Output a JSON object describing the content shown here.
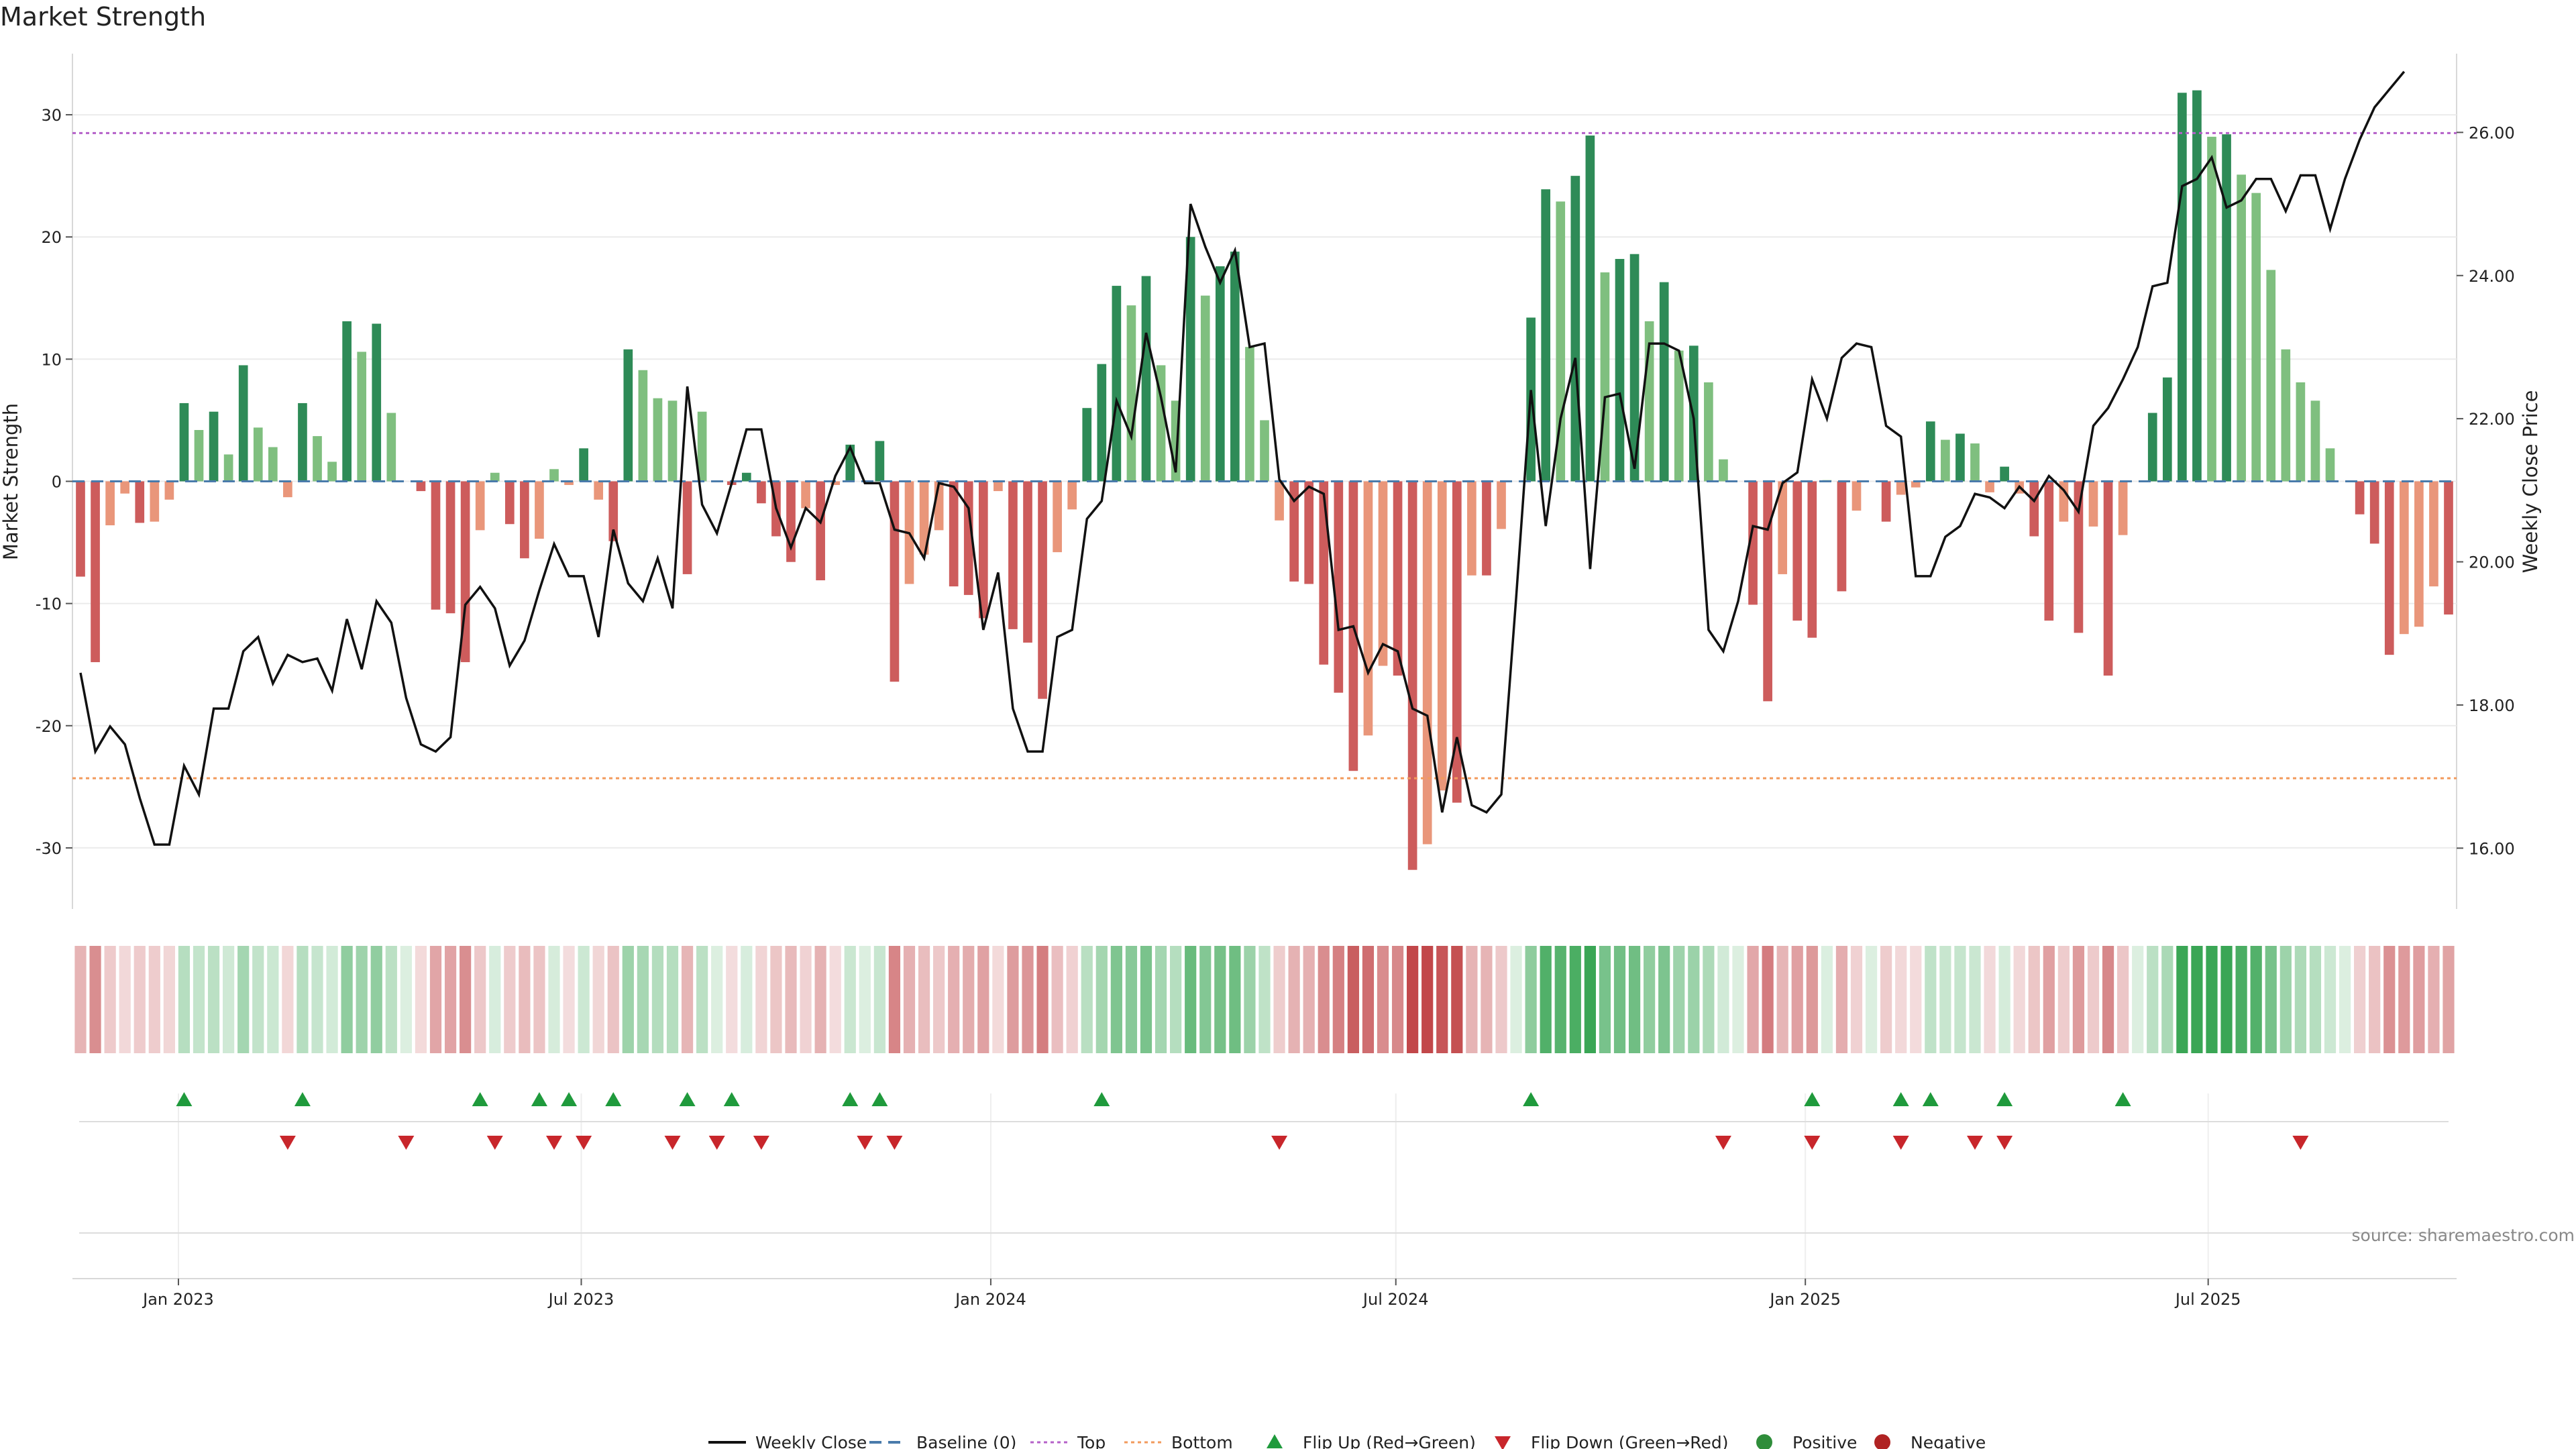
{
  "chart_data": {
    "type": "bar",
    "title": "Market Strength",
    "ylabel": "Market Strength",
    "y2label": "Weekly Close Price",
    "ylim": [
      -35,
      35
    ],
    "y2lim": [
      15.15,
      27.1
    ],
    "yticks": [
      -30,
      -20,
      -10,
      0,
      10,
      20,
      30
    ],
    "y2ticks": [
      "16.00",
      "18.00",
      "20.00",
      "22.00",
      "24.00",
      "26.00"
    ],
    "x_start": "2022-11-18",
    "x_end": "2025-10-17",
    "xticks": [
      {
        "date": "2023-01-01",
        "label": "Jan 2023"
      },
      {
        "date": "2023-07-01",
        "label": "Jul 2023"
      },
      {
        "date": "2024-01-01",
        "label": "Jan 2024"
      },
      {
        "date": "2024-07-01",
        "label": "Jul 2024"
      },
      {
        "date": "2025-01-01",
        "label": "Jan 2025"
      },
      {
        "date": "2025-07-01",
        "label": "Jul 2025"
      }
    ],
    "top_line": 28.5,
    "bottom_line": -24.3,
    "strength_values": [
      -7.8,
      -14.8,
      -3.6,
      -1.0,
      -3.4,
      -3.3,
      -1.5,
      6.4,
      4.2,
      5.7,
      2.2,
      9.5,
      4.4,
      2.8,
      -1.3,
      6.4,
      3.7,
      1.6,
      13.1,
      10.6,
      12.9,
      5.6,
      0,
      -0.8,
      -10.5,
      -10.8,
      -14.8,
      -4.0,
      0.7,
      -3.5,
      -6.3,
      -4.7,
      1.0,
      -0.3,
      2.7,
      -1.5,
      -4.9,
      10.8,
      9.1,
      6.8,
      6.6,
      -7.6,
      5.7,
      0,
      -0.3,
      0.7,
      -1.8,
      -4.5,
      -6.6,
      -2.2,
      -8.1,
      -0.3,
      3.0,
      0,
      3.3,
      -16.4,
      -8.4,
      -6.0,
      -4.0,
      -8.6,
      -9.3,
      -11.2,
      -0.8,
      -12.1,
      -13.2,
      -17.8,
      -5.8,
      -2.3,
      6.0,
      9.6,
      16.0,
      14.4,
      16.8,
      9.5,
      6.6,
      20.0,
      15.2,
      17.6,
      18.8,
      11.0,
      5.0,
      -3.2,
      -8.2,
      -8.4,
      -15.0,
      -17.3,
      -23.7,
      -20.8,
      -15.1,
      -15.9,
      -31.8,
      -29.7,
      -25.3,
      -26.3,
      -7.7,
      -7.7,
      -3.9,
      0,
      13.4,
      23.9,
      22.9,
      25.0,
      28.3,
      17.1,
      18.2,
      18.6,
      13.1,
      16.3,
      10.7,
      11.1,
      8.1,
      1.8,
      0,
      -10.1,
      -18.0,
      -7.6,
      -11.4,
      -12.8,
      0.1,
      -9.0,
      -2.4,
      0,
      -3.3,
      -1.1,
      -0.5,
      4.9,
      3.4,
      3.9,
      3.1,
      -0.9,
      1.2,
      -1.0,
      -4.5,
      -11.4,
      -3.3,
      -12.4,
      -3.7,
      -15.9,
      -4.4,
      0,
      5.6,
      8.5,
      31.8,
      32.0,
      28.2,
      28.4,
      25.1,
      23.6,
      17.3,
      10.8,
      8.1,
      6.6,
      2.7,
      0,
      -2.7,
      -5.1,
      -14.2,
      -12.5,
      -11.9,
      -8.6,
      -10.9
    ],
    "close_values": [
      18.45,
      17.35,
      17.7,
      17.45,
      16.7,
      16.05,
      16.05,
      17.15,
      16.75,
      17.95,
      17.95,
      18.75,
      18.95,
      18.3,
      18.7,
      18.6,
      18.65,
      18.2,
      19.2,
      18.5,
      19.45,
      19.15,
      18.1,
      17.45,
      17.35,
      17.55,
      19.4,
      19.65,
      19.35,
      18.55,
      18.9,
      19.6,
      20.25,
      19.8,
      19.8,
      18.95,
      20.45,
      19.7,
      19.45,
      20.05,
      19.35,
      22.45,
      20.8,
      20.4,
      21.1,
      21.85,
      21.85,
      20.75,
      20.2,
      20.75,
      20.55,
      21.2,
      21.6,
      21.1,
      21.1,
      20.45,
      20.4,
      20.05,
      21.1,
      21.05,
      20.75,
      19.05,
      19.85,
      17.95,
      17.35,
      17.35,
      18.95,
      19.05,
      20.6,
      20.85,
      22.25,
      21.75,
      23.2,
      22.3,
      21.25,
      25.0,
      24.4,
      23.9,
      24.35,
      23.0,
      23.05,
      21.15,
      20.85,
      21.05,
      20.95,
      19.05,
      19.1,
      18.45,
      18.85,
      18.75,
      17.95,
      17.85,
      16.5,
      17.55,
      16.6,
      16.5,
      16.75,
      19.5,
      22.4,
      20.5,
      22.0,
      22.85,
      19.9,
      22.3,
      22.35,
      21.3,
      23.05,
      23.05,
      22.95,
      22.0,
      19.05,
      18.75,
      19.45,
      20.5,
      20.45,
      21.1,
      21.25,
      22.55,
      22.0,
      22.85,
      23.05,
      23.0,
      21.9,
      21.75,
      19.8,
      19.8,
      20.35,
      20.5,
      20.95,
      20.9,
      20.75,
      21.05,
      20.85,
      21.2,
      21.0,
      20.7,
      21.9,
      22.15,
      22.55,
      23.0,
      23.85,
      23.9,
      25.25,
      25.35,
      25.65,
      24.95,
      25.05,
      25.35,
      25.35,
      24.9,
      25.4,
      25.4,
      24.65,
      25.35,
      25.9,
      26.35,
      26.6,
      26.85
    ],
    "flip_up_index": [
      7,
      15,
      27,
      31,
      33,
      36,
      41,
      44,
      52,
      54,
      69,
      98,
      117,
      123,
      125,
      130,
      138
    ],
    "flip_down_index": [
      14,
      22,
      28,
      32,
      34,
      40,
      43,
      46,
      53,
      55,
      81,
      111,
      117,
      123,
      128,
      130,
      150
    ],
    "source": "source: sharemaestro.com",
    "legend": [
      {
        "label": "Weekly Close",
        "kind": "line",
        "color": "#111111"
      },
      {
        "label": "Baseline (0)",
        "kind": "dash",
        "color": "#4a7bab"
      },
      {
        "label": "Top",
        "kind": "dot",
        "color": "#b561c9"
      },
      {
        "label": "Bottom",
        "kind": "dot",
        "color": "#f29a5c"
      },
      {
        "label": "Flip Up (Red→Green)",
        "kind": "tri-up",
        "color": "#1f9a3c"
      },
      {
        "label": "Flip Down (Green→Red)",
        "kind": "tri-down",
        "color": "#c8262b"
      },
      {
        "label": "Positive",
        "kind": "circle",
        "color": "#2f8d3a"
      },
      {
        "label": "Negative",
        "kind": "circle",
        "color": "#b02323"
      }
    ],
    "colors": {
      "pos_dark": "#2e8b57",
      "pos_light": "#7fbf7f",
      "neg_dark": "#cd5c5c",
      "neg_light": "#e9967a",
      "top": "#b561c9",
      "bottom": "#f29a5c",
      "baseline": "#4a7bab",
      "close": "#111111"
    }
  }
}
